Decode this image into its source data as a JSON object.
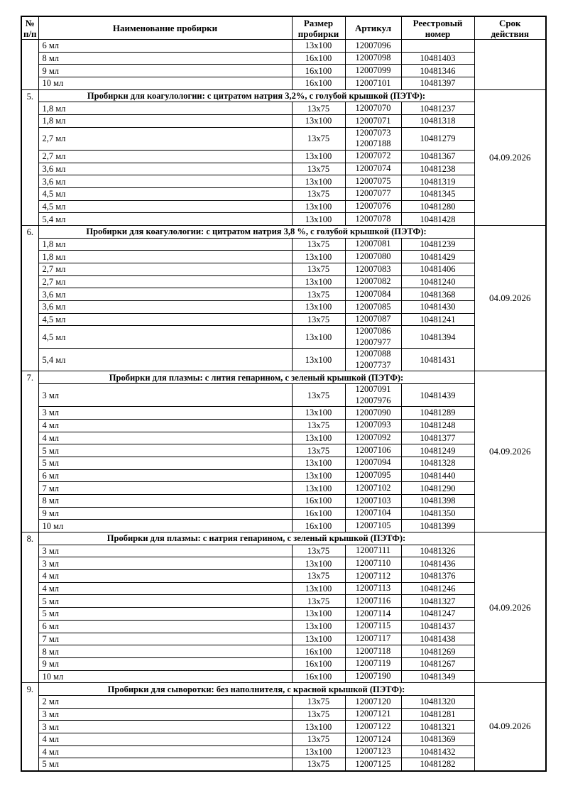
{
  "page": {
    "background_color": "#ffffff",
    "text_color": "#000000",
    "border_color": "#000000"
  },
  "table": {
    "headers": {
      "num": "№\nп/п",
      "name": "Наименование пробирки",
      "size": "Размер\nпробирки",
      "article": "Артикул",
      "registry": "Реестровый\nномер",
      "validity": "Срок\nдействия"
    },
    "sections": [
      {
        "num": "",
        "title": null,
        "validity": "",
        "rows": [
          {
            "name": "6 мл",
            "size": "13x100",
            "article": "12007096",
            "reg": ""
          },
          {
            "name": "8 мл",
            "size": "16x100",
            "article": "12007098",
            "reg": "10481403"
          },
          {
            "name": "9 мл",
            "size": "16x100",
            "article": "12007099",
            "reg": "10481346"
          },
          {
            "name": "10 мл",
            "size": "16x100",
            "article": "12007101",
            "reg": "10481397"
          }
        ]
      },
      {
        "num": "5.",
        "title": "Пробирки для коагулологии: с цитратом натрия 3,2%, с голубой крышкой (ПЭТФ):",
        "validity": "04.09.2026",
        "rows": [
          {
            "name": "1,8 мл",
            "size": "13x75",
            "article": "12007070",
            "reg": "10481237"
          },
          {
            "name": "1,8 мл",
            "size": "13x100",
            "article": "12007071",
            "reg": "10481318"
          },
          {
            "name": "2,7 мл",
            "size": "13x75",
            "article": "12007073\n12007188",
            "reg": "10481279"
          },
          {
            "name": "2,7 мл",
            "size": "13x100",
            "article": "12007072",
            "reg": "10481367"
          },
          {
            "name": "3,6 мл",
            "size": "13x75",
            "article": "12007074",
            "reg": "10481238"
          },
          {
            "name": "3,6 мл",
            "size": "13x100",
            "article": "12007075",
            "reg": "10481319"
          },
          {
            "name": "4,5 мл",
            "size": "13x75",
            "article": "12007077",
            "reg": "10481345"
          },
          {
            "name": "4,5 мл",
            "size": "13x100",
            "article": "12007076",
            "reg": "10481280"
          },
          {
            "name": "5,4 мл",
            "size": "13x100",
            "article": "12007078",
            "reg": "10481428"
          }
        ]
      },
      {
        "num": "6.",
        "title": "Пробирки для коагулологии: с цитратом натрия 3,8 %, с голубой крышкой (ПЭТФ):",
        "validity": "04.09.2026",
        "rows": [
          {
            "name": "1,8 мл",
            "size": "13x75",
            "article": "12007081",
            "reg": "10481239"
          },
          {
            "name": "1,8 мл",
            "size": "13x100",
            "article": "12007080",
            "reg": "10481429"
          },
          {
            "name": "2,7 мл",
            "size": "13x75",
            "article": "12007083",
            "reg": "10481406"
          },
          {
            "name": "2,7 мл",
            "size": "13x100",
            "article": "12007082",
            "reg": "10481240"
          },
          {
            "name": "3,6 мл",
            "size": "13x75",
            "article": "12007084",
            "reg": "10481368"
          },
          {
            "name": "3,6 мл",
            "size": "13x100",
            "article": "12007085",
            "reg": "10481430"
          },
          {
            "name": "4,5 мл",
            "size": "13x75",
            "article": "12007087",
            "reg": "10481241"
          },
          {
            "name": "4,5 мл",
            "size": "13x100",
            "article": "12007086\n12007977",
            "reg": "10481394"
          },
          {
            "name": "5,4 мл",
            "size": "13x100",
            "article": "12007088\n12007737",
            "reg": "10481431"
          }
        ]
      },
      {
        "num": "7.",
        "title": "Пробирки для плазмы: с лития гепарином, с зеленый крышкой (ПЭТФ):",
        "validity": "04.09.2026",
        "rows": [
          {
            "name": "3 мл",
            "size": "13x75",
            "article": "12007091\n12007976",
            "reg": "10481439"
          },
          {
            "name": "3 мл",
            "size": "13x100",
            "article": "12007090",
            "reg": "10481289"
          },
          {
            "name": "4 мл",
            "size": "13x75",
            "article": "12007093",
            "reg": "10481248"
          },
          {
            "name": "4 мл",
            "size": "13x100",
            "article": "12007092",
            "reg": "10481377"
          },
          {
            "name": "5 мл",
            "size": "13x75",
            "article": "12007106",
            "reg": "10481249"
          },
          {
            "name": "5 мл",
            "size": "13x100",
            "article": "12007094",
            "reg": "10481328"
          },
          {
            "name": "6 мл",
            "size": "13x100",
            "article": "12007095",
            "reg": "10481440"
          },
          {
            "name": "7 мл",
            "size": "13x100",
            "article": "12007102",
            "reg": "10481290"
          },
          {
            "name": "8 мл",
            "size": "16x100",
            "article": "12007103",
            "reg": "10481398"
          },
          {
            "name": "9 мл",
            "size": "16x100",
            "article": "12007104",
            "reg": "10481350"
          },
          {
            "name": "10 мл",
            "size": "16x100",
            "article": "12007105",
            "reg": "10481399"
          }
        ]
      },
      {
        "num": "8.",
        "title": "Пробирки для плазмы: с натрия гепарином, с зеленый крышкой (ПЭТФ):",
        "validity": "04.09.2026",
        "rows": [
          {
            "name": "3 мл",
            "size": "13x75",
            "article": "12007111",
            "reg": "10481326"
          },
          {
            "name": "3 мл",
            "size": "13x100",
            "article": "12007110",
            "reg": "10481436"
          },
          {
            "name": "4 мл",
            "size": "13x75",
            "article": "12007112",
            "reg": "10481376"
          },
          {
            "name": "4 мл",
            "size": "13x100",
            "article": "12007113",
            "reg": "10481246"
          },
          {
            "name": "5 мл",
            "size": "13x75",
            "article": "12007116",
            "reg": "10481327"
          },
          {
            "name": "5 мл",
            "size": "13x100",
            "article": "12007114",
            "reg": "10481247"
          },
          {
            "name": "6 мл",
            "size": "13x100",
            "article": "12007115",
            "reg": "10481437"
          },
          {
            "name": "7 мл",
            "size": "13x100",
            "article": "12007117",
            "reg": "10481438"
          },
          {
            "name": "8 мл",
            "size": "16x100",
            "article": "12007118",
            "reg": "10481269"
          },
          {
            "name": "9 мл",
            "size": "16x100",
            "article": "12007119",
            "reg": "10481267"
          },
          {
            "name": "10 мл",
            "size": "16x100",
            "article": "12007190",
            "reg": "10481349"
          }
        ]
      },
      {
        "num": "9.",
        "title": "Пробирки для сыворотки: без наполнителя, с красной крышкой (ПЭТФ):",
        "validity": "04.09.2026",
        "rows": [
          {
            "name": "2 мл",
            "size": "13x75",
            "article": "12007120",
            "reg": "10481320"
          },
          {
            "name": "3 мл",
            "size": "13x75",
            "article": "12007121",
            "reg": "10481281"
          },
          {
            "name": "3 мл",
            "size": "13x100",
            "article": "12007122",
            "reg": "10481321"
          },
          {
            "name": "4 мл",
            "size": "13x75",
            "article": "12007124",
            "reg": "10481369"
          },
          {
            "name": "4 мл",
            "size": "13x100",
            "article": "12007123",
            "reg": "10481432"
          },
          {
            "name": "5 мл",
            "size": "13x75",
            "article": "12007125",
            "reg": "10481282"
          }
        ]
      }
    ]
  }
}
